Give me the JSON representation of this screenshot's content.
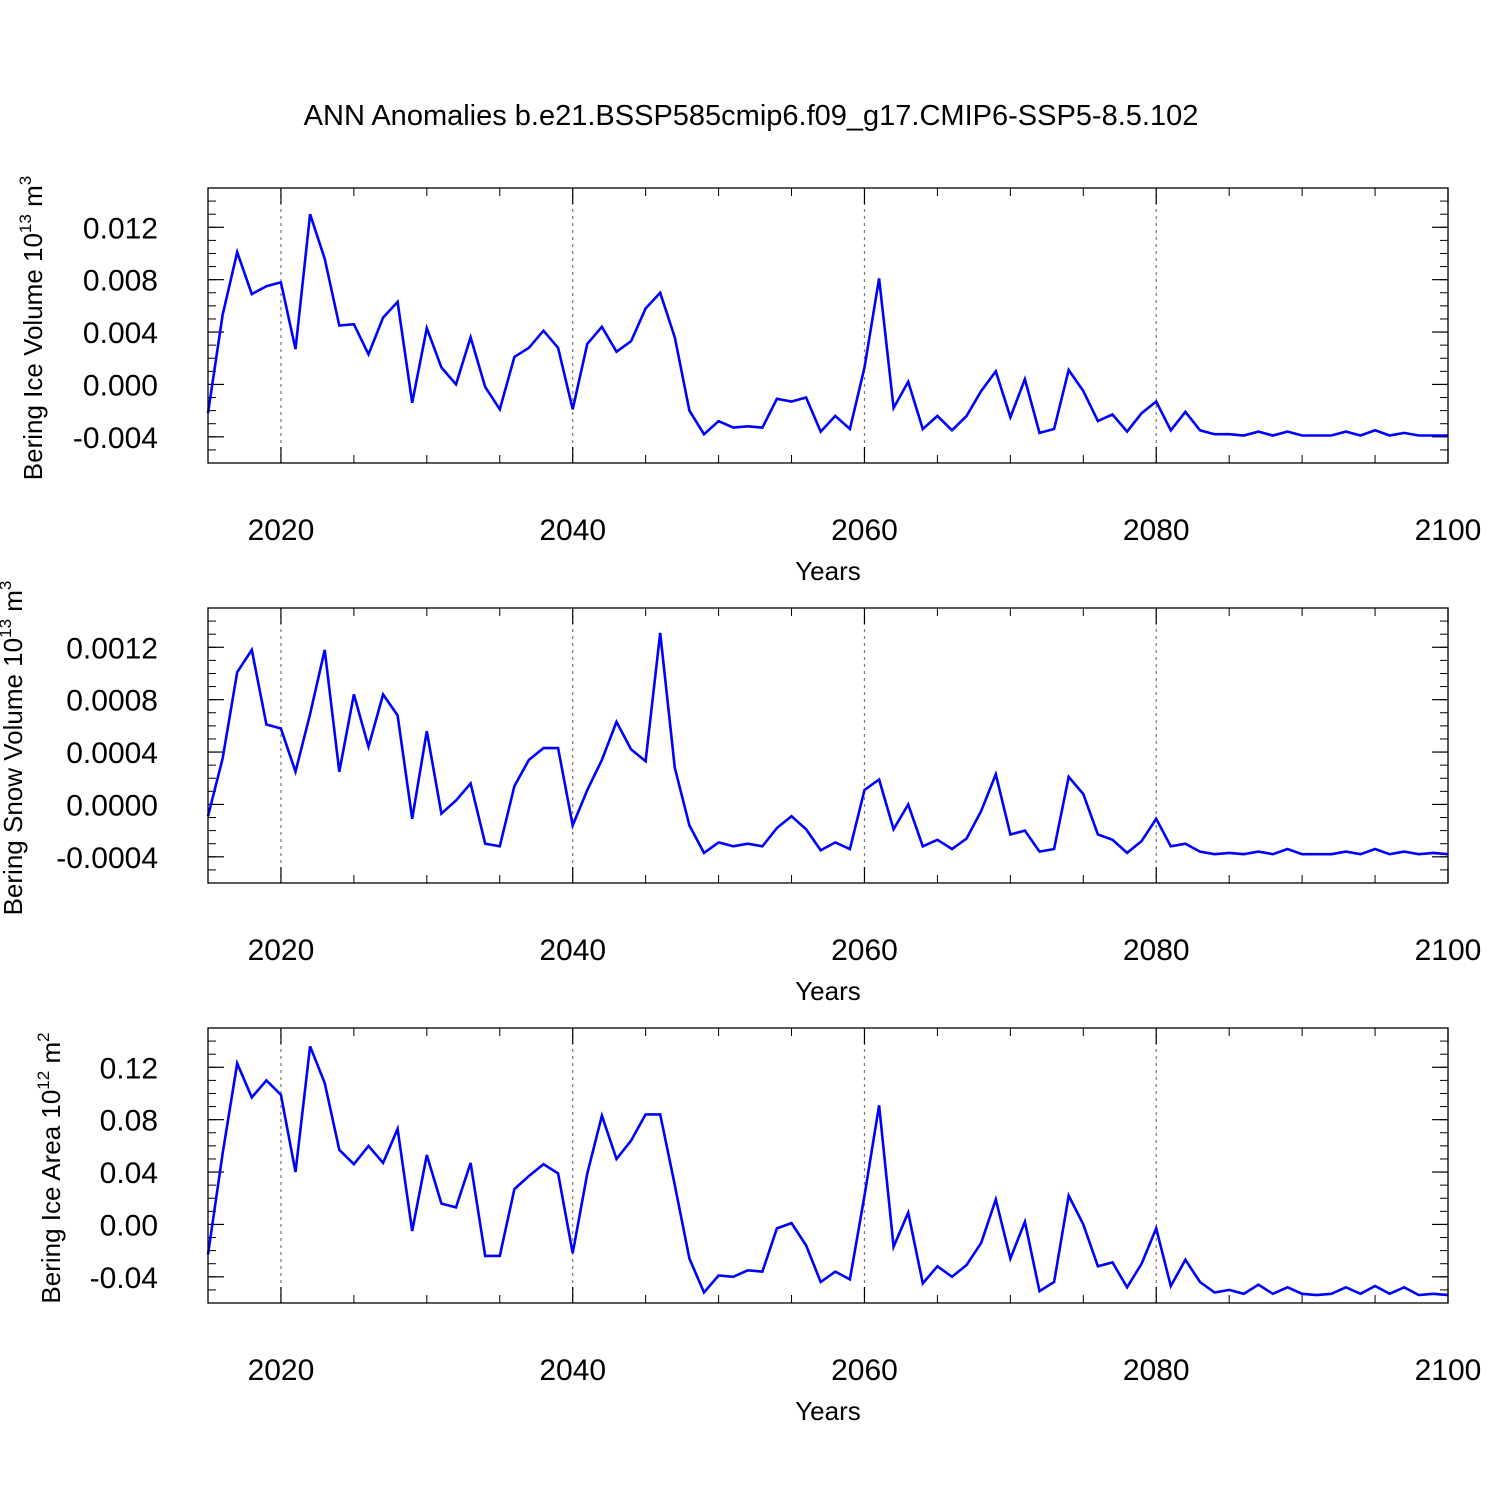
{
  "figure": {
    "title": "ANN Anomalies b.e21.BSSP585cmip6.f09_g17.CMIP6-SSP5-8.5.102",
    "line_color": "#0000ff"
  },
  "chart_data": [
    {
      "type": "line",
      "ylabel_main": "Bering Ice Volume 10",
      "ylabel_sup": "13",
      "ylabel_unit": "m",
      "ylabel_unit_sup": "3",
      "xlabel": "Years",
      "xlim": [
        2015,
        2100
      ],
      "ylim": [
        -0.006,
        0.015
      ],
      "yticks": [
        -0.004,
        0.0,
        0.004,
        0.008,
        0.012
      ],
      "ytick_labels": [
        "-0.004",
        "0.000",
        "0.004",
        "0.008",
        "0.012"
      ],
      "xticks": [
        2020,
        2040,
        2060,
        2080,
        2100
      ],
      "xtick_labels": [
        "2020",
        "2040",
        "2060",
        "2080",
        "2100"
      ],
      "x": [
        2015,
        2016,
        2017,
        2018,
        2019,
        2020,
        2021,
        2022,
        2023,
        2024,
        2025,
        2026,
        2027,
        2028,
        2029,
        2030,
        2031,
        2032,
        2033,
        2034,
        2035,
        2036,
        2037,
        2038,
        2039,
        2040,
        2041,
        2042,
        2043,
        2044,
        2045,
        2046,
        2047,
        2048,
        2049,
        2050,
        2051,
        2052,
        2053,
        2054,
        2055,
        2056,
        2057,
        2058,
        2059,
        2060,
        2061,
        2062,
        2063,
        2064,
        2065,
        2066,
        2067,
        2068,
        2069,
        2070,
        2071,
        2072,
        2073,
        2074,
        2075,
        2076,
        2077,
        2078,
        2079,
        2080,
        2081,
        2082,
        2083,
        2084,
        2085,
        2086,
        2087,
        2088,
        2089,
        2090,
        2091,
        2092,
        2093,
        2094,
        2095,
        2096,
        2097,
        2098,
        2099,
        2100
      ],
      "values": [
        -0.0022,
        0.0053,
        0.0101,
        0.0069,
        0.0075,
        0.0078,
        0.0027,
        0.013,
        0.0096,
        0.0045,
        0.0046,
        0.0023,
        0.0051,
        0.0063,
        -0.0014,
        0.0043,
        0.0013,
        0.0,
        0.0036,
        -0.0002,
        -0.0019,
        0.0021,
        0.0028,
        0.0041,
        0.0028,
        -0.0019,
        0.0031,
        0.0044,
        0.0025,
        0.0033,
        0.0058,
        0.007,
        0.0036,
        -0.002,
        -0.0038,
        -0.0028,
        -0.0033,
        -0.0032,
        -0.0033,
        -0.0011,
        -0.0013,
        -0.001,
        -0.0036,
        -0.0024,
        -0.0034,
        0.0013,
        0.0081,
        -0.0018,
        0.0002,
        -0.0034,
        -0.0024,
        -0.0035,
        -0.0024,
        -0.0005,
        0.001,
        -0.0025,
        0.0004,
        -0.0037,
        -0.0034,
        0.0011,
        -0.0005,
        -0.0028,
        -0.0023,
        -0.0036,
        -0.0022,
        -0.0013,
        -0.0035,
        -0.0021,
        -0.0035,
        -0.0038,
        -0.0038,
        -0.0039,
        -0.0036,
        -0.0039,
        -0.0036,
        -0.0039,
        -0.0039,
        -0.0039,
        -0.0036,
        -0.0039,
        -0.0035,
        -0.0039,
        -0.0037,
        -0.0039,
        -0.0039,
        -0.0039
      ]
    },
    {
      "type": "line",
      "ylabel_main": "Bering Snow Volume 10",
      "ylabel_sup": "13",
      "ylabel_unit": "m",
      "ylabel_unit_sup": "3",
      "xlabel": "Years",
      "xlim": [
        2015,
        2100
      ],
      "ylim": [
        -0.0006,
        0.0015
      ],
      "yticks": [
        -0.0004,
        0.0,
        0.0004,
        0.0008,
        0.0012
      ],
      "ytick_labels": [
        "-0.0004",
        "0.0000",
        "0.0004",
        "0.0008",
        "0.0012"
      ],
      "xticks": [
        2020,
        2040,
        2060,
        2080,
        2100
      ],
      "xtick_labels": [
        "2020",
        "2040",
        "2060",
        "2080",
        "2100"
      ],
      "x": [
        2015,
        2016,
        2017,
        2018,
        2019,
        2020,
        2021,
        2022,
        2023,
        2024,
        2025,
        2026,
        2027,
        2028,
        2029,
        2030,
        2031,
        2032,
        2033,
        2034,
        2035,
        2036,
        2037,
        2038,
        2039,
        2040,
        2041,
        2042,
        2043,
        2044,
        2045,
        2046,
        2047,
        2048,
        2049,
        2050,
        2051,
        2052,
        2053,
        2054,
        2055,
        2056,
        2057,
        2058,
        2059,
        2060,
        2061,
        2062,
        2063,
        2064,
        2065,
        2066,
        2067,
        2068,
        2069,
        2070,
        2071,
        2072,
        2073,
        2074,
        2075,
        2076,
        2077,
        2078,
        2079,
        2080,
        2081,
        2082,
        2083,
        2084,
        2085,
        2086,
        2087,
        2088,
        2089,
        2090,
        2091,
        2092,
        2093,
        2094,
        2095,
        2096,
        2097,
        2098,
        2099,
        2100
      ],
      "values": [
        -9e-05,
        0.00035,
        0.00101,
        0.00118,
        0.00061,
        0.00058,
        0.00025,
        0.00069,
        0.00118,
        0.00025,
        0.00084,
        0.00044,
        0.00084,
        0.00068,
        -0.00011,
        0.00056,
        -7e-05,
        3e-05,
        0.00016,
        -0.0003,
        -0.00032,
        0.00014,
        0.00034,
        0.00043,
        0.00043,
        -0.00016,
        0.00011,
        0.00034,
        0.00063,
        0.00042,
        0.00033,
        0.00131,
        0.00028,
        -0.00016,
        -0.00037,
        -0.00029,
        -0.00032,
        -0.0003,
        -0.00032,
        -0.00018,
        -9e-05,
        -0.00019,
        -0.00035,
        -0.00029,
        -0.00034,
        0.00011,
        0.00019,
        -0.00019,
        0.0,
        -0.00032,
        -0.00027,
        -0.00034,
        -0.00026,
        -5e-05,
        0.00023,
        -0.00023,
        -0.0002,
        -0.00036,
        -0.00034,
        0.00021,
        8e-05,
        -0.00023,
        -0.00027,
        -0.00037,
        -0.00028,
        -0.00011,
        -0.00032,
        -0.0003,
        -0.00036,
        -0.00038,
        -0.00037,
        -0.00038,
        -0.00036,
        -0.00038,
        -0.00034,
        -0.00038,
        -0.00038,
        -0.00038,
        -0.00036,
        -0.00038,
        -0.00034,
        -0.00038,
        -0.00036,
        -0.00038,
        -0.00037,
        -0.00038
      ]
    },
    {
      "type": "line",
      "ylabel_main": "Bering Ice Area 10",
      "ylabel_sup": "12",
      "ylabel_unit": "m",
      "ylabel_unit_sup": "2",
      "xlabel": "Years",
      "xlim": [
        2015,
        2100
      ],
      "ylim": [
        -0.06,
        0.15
      ],
      "yticks": [
        -0.04,
        0.0,
        0.04,
        0.08,
        0.12
      ],
      "ytick_labels": [
        "-0.04",
        "0.00",
        "0.04",
        "0.08",
        "0.12"
      ],
      "xticks": [
        2020,
        2040,
        2060,
        2080,
        2100
      ],
      "xtick_labels": [
        "2020",
        "2040",
        "2060",
        "2080",
        "2100"
      ],
      "x": [
        2015,
        2016,
        2017,
        2018,
        2019,
        2020,
        2021,
        2022,
        2023,
        2024,
        2025,
        2026,
        2027,
        2028,
        2029,
        2030,
        2031,
        2032,
        2033,
        2034,
        2035,
        2036,
        2037,
        2038,
        2039,
        2040,
        2041,
        2042,
        2043,
        2044,
        2045,
        2046,
        2047,
        2048,
        2049,
        2050,
        2051,
        2052,
        2053,
        2054,
        2055,
        2056,
        2057,
        2058,
        2059,
        2060,
        2061,
        2062,
        2063,
        2064,
        2065,
        2066,
        2067,
        2068,
        2069,
        2070,
        2071,
        2072,
        2073,
        2074,
        2075,
        2076,
        2077,
        2078,
        2079,
        2080,
        2081,
        2082,
        2083,
        2084,
        2085,
        2086,
        2087,
        2088,
        2089,
        2090,
        2091,
        2092,
        2093,
        2094,
        2095,
        2096,
        2097,
        2098,
        2099,
        2100
      ],
      "values": [
        -0.023,
        0.054,
        0.123,
        0.097,
        0.11,
        0.099,
        0.04,
        0.136,
        0.108,
        0.057,
        0.046,
        0.06,
        0.047,
        0.073,
        -0.005,
        0.053,
        0.016,
        0.013,
        0.047,
        -0.024,
        -0.024,
        0.027,
        0.037,
        0.046,
        0.039,
        -0.022,
        0.039,
        0.083,
        0.05,
        0.064,
        0.084,
        0.084,
        0.03,
        -0.026,
        -0.052,
        -0.039,
        -0.04,
        -0.035,
        -0.036,
        -0.003,
        0.001,
        -0.016,
        -0.044,
        -0.036,
        -0.042,
        0.022,
        0.091,
        -0.017,
        0.009,
        -0.045,
        -0.032,
        -0.04,
        -0.031,
        -0.014,
        0.019,
        -0.026,
        0.002,
        -0.051,
        -0.044,
        0.022,
        0.0,
        -0.032,
        -0.029,
        -0.048,
        -0.03,
        -0.003,
        -0.047,
        -0.027,
        -0.044,
        -0.052,
        -0.05,
        -0.053,
        -0.046,
        -0.053,
        -0.048,
        -0.053,
        -0.054,
        -0.053,
        -0.048,
        -0.053,
        -0.047,
        -0.053,
        -0.048,
        -0.054,
        -0.053,
        -0.054
      ]
    }
  ]
}
